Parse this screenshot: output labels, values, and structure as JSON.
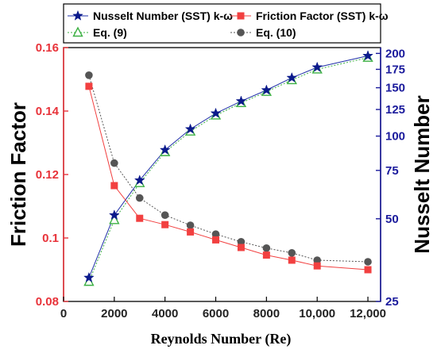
{
  "chart_data": {
    "type": "line",
    "xlabel": "Reynolds Number (Re)",
    "ylabel_left": "Friction Factor",
    "ylabel_right": "Nusselt Number",
    "xlim": [
      0,
      12500
    ],
    "ylim_left": [
      0.08,
      0.16
    ],
    "ylim_right": [
      25,
      210
    ],
    "right_axis_scale": "log",
    "x_ticks": [
      0,
      2000,
      4000,
      6000,
      8000,
      10000,
      12000
    ],
    "x_tick_labels": [
      "0",
      "2000",
      "4000",
      "6000",
      "8000",
      "10,000",
      "12,000"
    ],
    "left_ticks": [
      0.08,
      0.1,
      0.12,
      0.14,
      0.16
    ],
    "left_tick_labels": [
      "0.08",
      "0.1",
      "0.12",
      "0.14",
      "0.16"
    ],
    "right_ticks": [
      25,
      50,
      75,
      100,
      125,
      150,
      175,
      200
    ],
    "right_tick_labels": [
      "25",
      "50",
      "75",
      "100",
      "125",
      "150",
      "175",
      "200"
    ],
    "x": [
      1000,
      2000,
      3000,
      4000,
      5000,
      6000,
      7000,
      8000,
      9000,
      10000,
      12000
    ],
    "series": [
      {
        "name": "Nusselt Number (SST) k-ω",
        "axis": "right",
        "color": "#1f2fa8",
        "marker": "star",
        "line": "solid",
        "values": [
          30.5,
          51.5,
          69,
          89,
          106,
          121,
          134,
          147,
          163,
          178,
          196
        ]
      },
      {
        "name": "Friction Factor (SST) k-ω",
        "axis": "left",
        "color": "#f24040",
        "marker": "square",
        "line": "solid",
        "values": [
          0.1478,
          0.1165,
          0.1062,
          0.1042,
          0.1019,
          0.0994,
          0.097,
          0.0946,
          0.093,
          0.0912,
          0.09
        ]
      },
      {
        "name": "Eq. (9)",
        "axis": "right",
        "color": "#3cb043",
        "marker": "triangle",
        "line": "dotted",
        "values": [
          29.5,
          49.5,
          67.5,
          87.5,
          104,
          119,
          132,
          145,
          160,
          175,
          193
        ]
      },
      {
        "name": "Eq. (10)",
        "axis": "left",
        "color": "#555555",
        "marker": "circle",
        "line": "dotted",
        "values": [
          0.1513,
          0.1236,
          0.1126,
          0.1072,
          0.104,
          0.1012,
          0.0988,
          0.0968,
          0.0953,
          0.093,
          0.0925
        ]
      }
    ],
    "legend": {
      "position": "top",
      "entries": [
        "Nusselt Number (SST) k-ω",
        "Friction Factor (SST) k-ω",
        "Eq. (9)",
        "Eq. (10)"
      ]
    },
    "colors": {
      "left_axis": "#e8333a",
      "right_axis": "#1a1a9c"
    },
    "grid": false
  }
}
